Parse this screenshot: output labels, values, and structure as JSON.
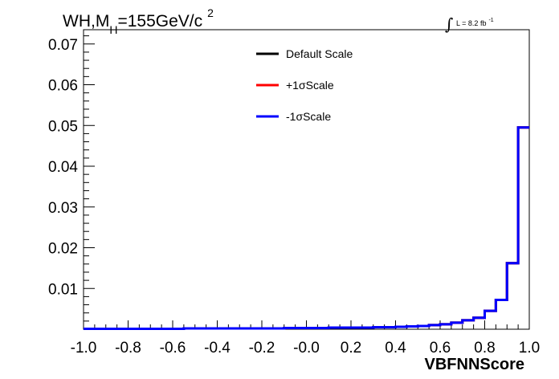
{
  "title": {
    "prefix": "WH,M",
    "subscript": "H",
    "mid": "=155GeV/c",
    "superscript": "2"
  },
  "luminosity": {
    "integral": "∫",
    "text": "L = 8.2 fb",
    "superscript": "-1"
  },
  "chart_data": {
    "type": "line",
    "style": "step-histogram",
    "xlabel": "VBFNNScore",
    "ylabel": "",
    "xlim": [
      -1.0,
      1.0
    ],
    "ylim": [
      0,
      0.0735
    ],
    "x_ticks": [
      "-1.0",
      "-0.8",
      "-0.6",
      "-0.4",
      "-0.2",
      "-0.0",
      "0.2",
      "0.4",
      "0.6",
      "0.8",
      "1.0"
    ],
    "y_ticks": [
      "0.01",
      "0.02",
      "0.03",
      "0.04",
      "0.05",
      "0.06",
      "0.07"
    ],
    "bin_edges": [
      -1.0,
      -0.95,
      -0.9,
      -0.85,
      -0.8,
      -0.75,
      -0.7,
      -0.65,
      -0.6,
      -0.55,
      -0.5,
      -0.45,
      -0.4,
      -0.35,
      -0.3,
      -0.25,
      -0.2,
      -0.15,
      -0.1,
      -0.05,
      0.0,
      0.05,
      0.1,
      0.15,
      0.2,
      0.25,
      0.3,
      0.35,
      0.4,
      0.45,
      0.5,
      0.55,
      0.6,
      0.65,
      0.7,
      0.75,
      0.8,
      0.85,
      0.9,
      0.95,
      1.0
    ],
    "series": [
      {
        "name": "Default Scale",
        "color": "#000000",
        "values": [
          0.0001,
          0.0001,
          0.0001,
          0.0001,
          0.0001,
          0.0001,
          0.0001,
          0.0001,
          0.0001,
          0.0002,
          0.0002,
          0.0002,
          0.0002,
          0.0002,
          0.0002,
          0.0002,
          0.0002,
          0.0002,
          0.0003,
          0.0003,
          0.0003,
          0.0003,
          0.0004,
          0.0004,
          0.0004,
          0.0004,
          0.0005,
          0.0005,
          0.0006,
          0.0007,
          0.0008,
          0.001,
          0.0012,
          0.0016,
          0.0022,
          0.0028,
          0.0045,
          0.0072,
          0.0162,
          0.0495
        ]
      },
      {
        "name": "+1σScale",
        "color": "#ff0000",
        "values": [
          0.0001,
          0.0001,
          0.0001,
          0.0001,
          0.0001,
          0.0001,
          0.0001,
          0.0001,
          0.0001,
          0.0002,
          0.0002,
          0.0002,
          0.0002,
          0.0002,
          0.0002,
          0.0002,
          0.0002,
          0.0002,
          0.0003,
          0.0003,
          0.0003,
          0.0003,
          0.0004,
          0.0004,
          0.0004,
          0.0004,
          0.0005,
          0.0005,
          0.0006,
          0.0007,
          0.0008,
          0.001,
          0.0012,
          0.0016,
          0.0022,
          0.0028,
          0.0045,
          0.0072,
          0.0162,
          0.0495
        ]
      },
      {
        "name": "-1σScale",
        "color": "#0000ff",
        "values": [
          0.0001,
          0.0001,
          0.0001,
          0.0001,
          0.0001,
          0.0001,
          0.0001,
          0.0001,
          0.0001,
          0.0002,
          0.0002,
          0.0002,
          0.0002,
          0.0002,
          0.0002,
          0.0002,
          0.0002,
          0.0002,
          0.0003,
          0.0003,
          0.0003,
          0.0003,
          0.0004,
          0.0004,
          0.0004,
          0.0004,
          0.0005,
          0.0005,
          0.0006,
          0.0007,
          0.0008,
          0.001,
          0.0012,
          0.0016,
          0.0022,
          0.0028,
          0.0045,
          0.0072,
          0.0162,
          0.0495
        ]
      }
    ],
    "legend": {
      "placement": "top-center",
      "border": false
    },
    "grid": false
  }
}
